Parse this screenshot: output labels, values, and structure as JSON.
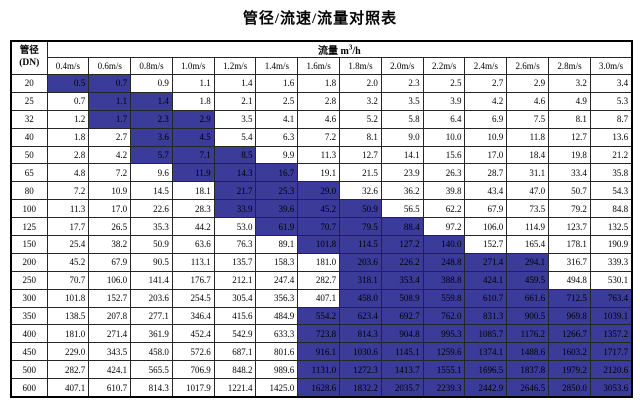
{
  "title": "管径/流速/流量对照表",
  "colors": {
    "highlight": "#3b3b9a"
  },
  "table": {
    "corner": {
      "line1": "管径",
      "line2": "(DN)"
    },
    "flow_header": {
      "prefix": "流量 m",
      "sup": "3",
      "suffix": "/h"
    },
    "velocity_headers": [
      "0.4m/s",
      "0.6m/s",
      "0.8m/s",
      "1.0m/s",
      "1.2m/s",
      "1.4m/s",
      "1.6m/s",
      "1.8m/s",
      "2.0m/s",
      "2.2m/s",
      "2.4m/s",
      "2.6m/s",
      "2.8m/s",
      "3.0m/s"
    ],
    "rows": [
      {
        "dn": "20",
        "values": [
          "0.5",
          "0.7",
          "0.9",
          "1.1",
          "1.4",
          "1.6",
          "1.8",
          "2.0",
          "2.3",
          "2.5",
          "2.7",
          "2.9",
          "3.2",
          "3.4"
        ],
        "hl": [
          0,
          1
        ]
      },
      {
        "dn": "25",
        "values": [
          "0.7",
          "1.1",
          "1.4",
          "1.8",
          "2.1",
          "2.5",
          "2.8",
          "3.2",
          "3.5",
          "3.9",
          "4.2",
          "4.6",
          "4.9",
          "5.3"
        ],
        "hl": [
          1,
          2
        ]
      },
      {
        "dn": "32",
        "values": [
          "1.2",
          "1.7",
          "2.3",
          "2.9",
          "3.5",
          "4.1",
          "4.6",
          "5.2",
          "5.8",
          "6.4",
          "6.9",
          "7.5",
          "8.1",
          "8.7"
        ],
        "hl": [
          1,
          3
        ]
      },
      {
        "dn": "40",
        "values": [
          "1.8",
          "2.7",
          "3.6",
          "4.5",
          "5.4",
          "6.3",
          "7.2",
          "8.1",
          "9.0",
          "10.0",
          "10.9",
          "11.8",
          "12.7",
          "13.6"
        ],
        "hl": [
          2,
          3
        ]
      },
      {
        "dn": "50",
        "values": [
          "2.8",
          "4.2",
          "5.7",
          "7.1",
          "8.5",
          "9.9",
          "11.3",
          "12.7",
          "14.1",
          "15.6",
          "17.0",
          "18.4",
          "19.8",
          "21.2"
        ],
        "hl": [
          2,
          4
        ]
      },
      {
        "dn": "65",
        "values": [
          "4.8",
          "7.2",
          "9.6",
          "11.9",
          "14.3",
          "16.7",
          "19.1",
          "21.5",
          "23.9",
          "26.3",
          "28.7",
          "31.1",
          "33.4",
          "35.8"
        ],
        "hl": [
          3,
          5
        ]
      },
      {
        "dn": "80",
        "values": [
          "7.2",
          "10.9",
          "14.5",
          "18.1",
          "21.7",
          "25.3",
          "29.0",
          "32.6",
          "36.2",
          "39.8",
          "43.4",
          "47.0",
          "50.7",
          "54.3"
        ],
        "hl": [
          4,
          6
        ]
      },
      {
        "dn": "100",
        "values": [
          "11.3",
          "17.0",
          "22.6",
          "28.3",
          "33.9",
          "39.6",
          "45.2",
          "50.9",
          "56.5",
          "62.2",
          "67.9",
          "73.5",
          "79.2",
          "84.8"
        ],
        "hl": [
          4,
          7
        ]
      },
      {
        "dn": "125",
        "values": [
          "17.7",
          "26.5",
          "35.3",
          "44.2",
          "53.0",
          "61.9",
          "70.7",
          "79.5",
          "88.4",
          "97.2",
          "106.0",
          "114.9",
          "123.7",
          "132.5"
        ],
        "hl": [
          5,
          8
        ]
      },
      {
        "dn": "150",
        "values": [
          "25.4",
          "38.2",
          "50.9",
          "63.6",
          "76.3",
          "89.1",
          "101.8",
          "114.5",
          "127.2",
          "140.0",
          "152.7",
          "165.4",
          "178.1",
          "190.9"
        ],
        "hl": [
          6,
          9
        ]
      },
      {
        "dn": "200",
        "values": [
          "45.2",
          "67.9",
          "90.5",
          "113.1",
          "135.7",
          "158.3",
          "181.0",
          "203.6",
          "226.2",
          "248.8",
          "271.4",
          "294.1",
          "316.7",
          "339.3"
        ],
        "hl": [
          7,
          11
        ]
      },
      {
        "dn": "250",
        "values": [
          "70.7",
          "106.0",
          "141.4",
          "176.7",
          "212.1",
          "247.4",
          "282.7",
          "318.1",
          "353.4",
          "388.8",
          "424.1",
          "459.5",
          "494.8",
          "530.1"
        ],
        "hl": [
          7,
          11
        ]
      },
      {
        "dn": "300",
        "values": [
          "101.8",
          "152.7",
          "203.6",
          "254.5",
          "305.4",
          "356.3",
          "407.1",
          "458.0",
          "508.9",
          "559.8",
          "610.7",
          "661.6",
          "712.5",
          "763.4"
        ],
        "hl": [
          7,
          13
        ]
      },
      {
        "dn": "350",
        "values": [
          "138.5",
          "207.8",
          "277.1",
          "346.4",
          "415.6",
          "484.9",
          "554.2",
          "623.4",
          "692.7",
          "762.0",
          "831.3",
          "900.5",
          "969.8",
          "1039.1"
        ],
        "hl": [
          6,
          13
        ]
      },
      {
        "dn": "400",
        "values": [
          "181.0",
          "271.4",
          "361.9",
          "452.4",
          "542.9",
          "633.3",
          "723.8",
          "814.3",
          "904.8",
          "995.3",
          "1085.7",
          "1176.2",
          "1266.7",
          "1357.2"
        ],
        "hl": [
          6,
          13
        ]
      },
      {
        "dn": "450",
        "values": [
          "229.0",
          "343.5",
          "458.0",
          "572.6",
          "687.1",
          "801.6",
          "916.1",
          "1030.6",
          "1145.1",
          "1259.6",
          "1374.1",
          "1488.6",
          "1603.2",
          "1717.7"
        ],
        "hl": [
          6,
          13
        ]
      },
      {
        "dn": "500",
        "values": [
          "282.7",
          "424.1",
          "565.5",
          "706.9",
          "848.2",
          "989.6",
          "1131.0",
          "1272.3",
          "1413.7",
          "1555.1",
          "1696.5",
          "1837.8",
          "1979.2",
          "2120.6"
        ],
        "hl": [
          6,
          13
        ]
      },
      {
        "dn": "600",
        "values": [
          "407.1",
          "610.7",
          "814.3",
          "1017.9",
          "1221.4",
          "1425.0",
          "1628.6",
          "1832.2",
          "2035.7",
          "2239.3",
          "2442.9",
          "2646.5",
          "2850.0",
          "3053.6"
        ],
        "hl": [
          6,
          13
        ]
      }
    ]
  }
}
